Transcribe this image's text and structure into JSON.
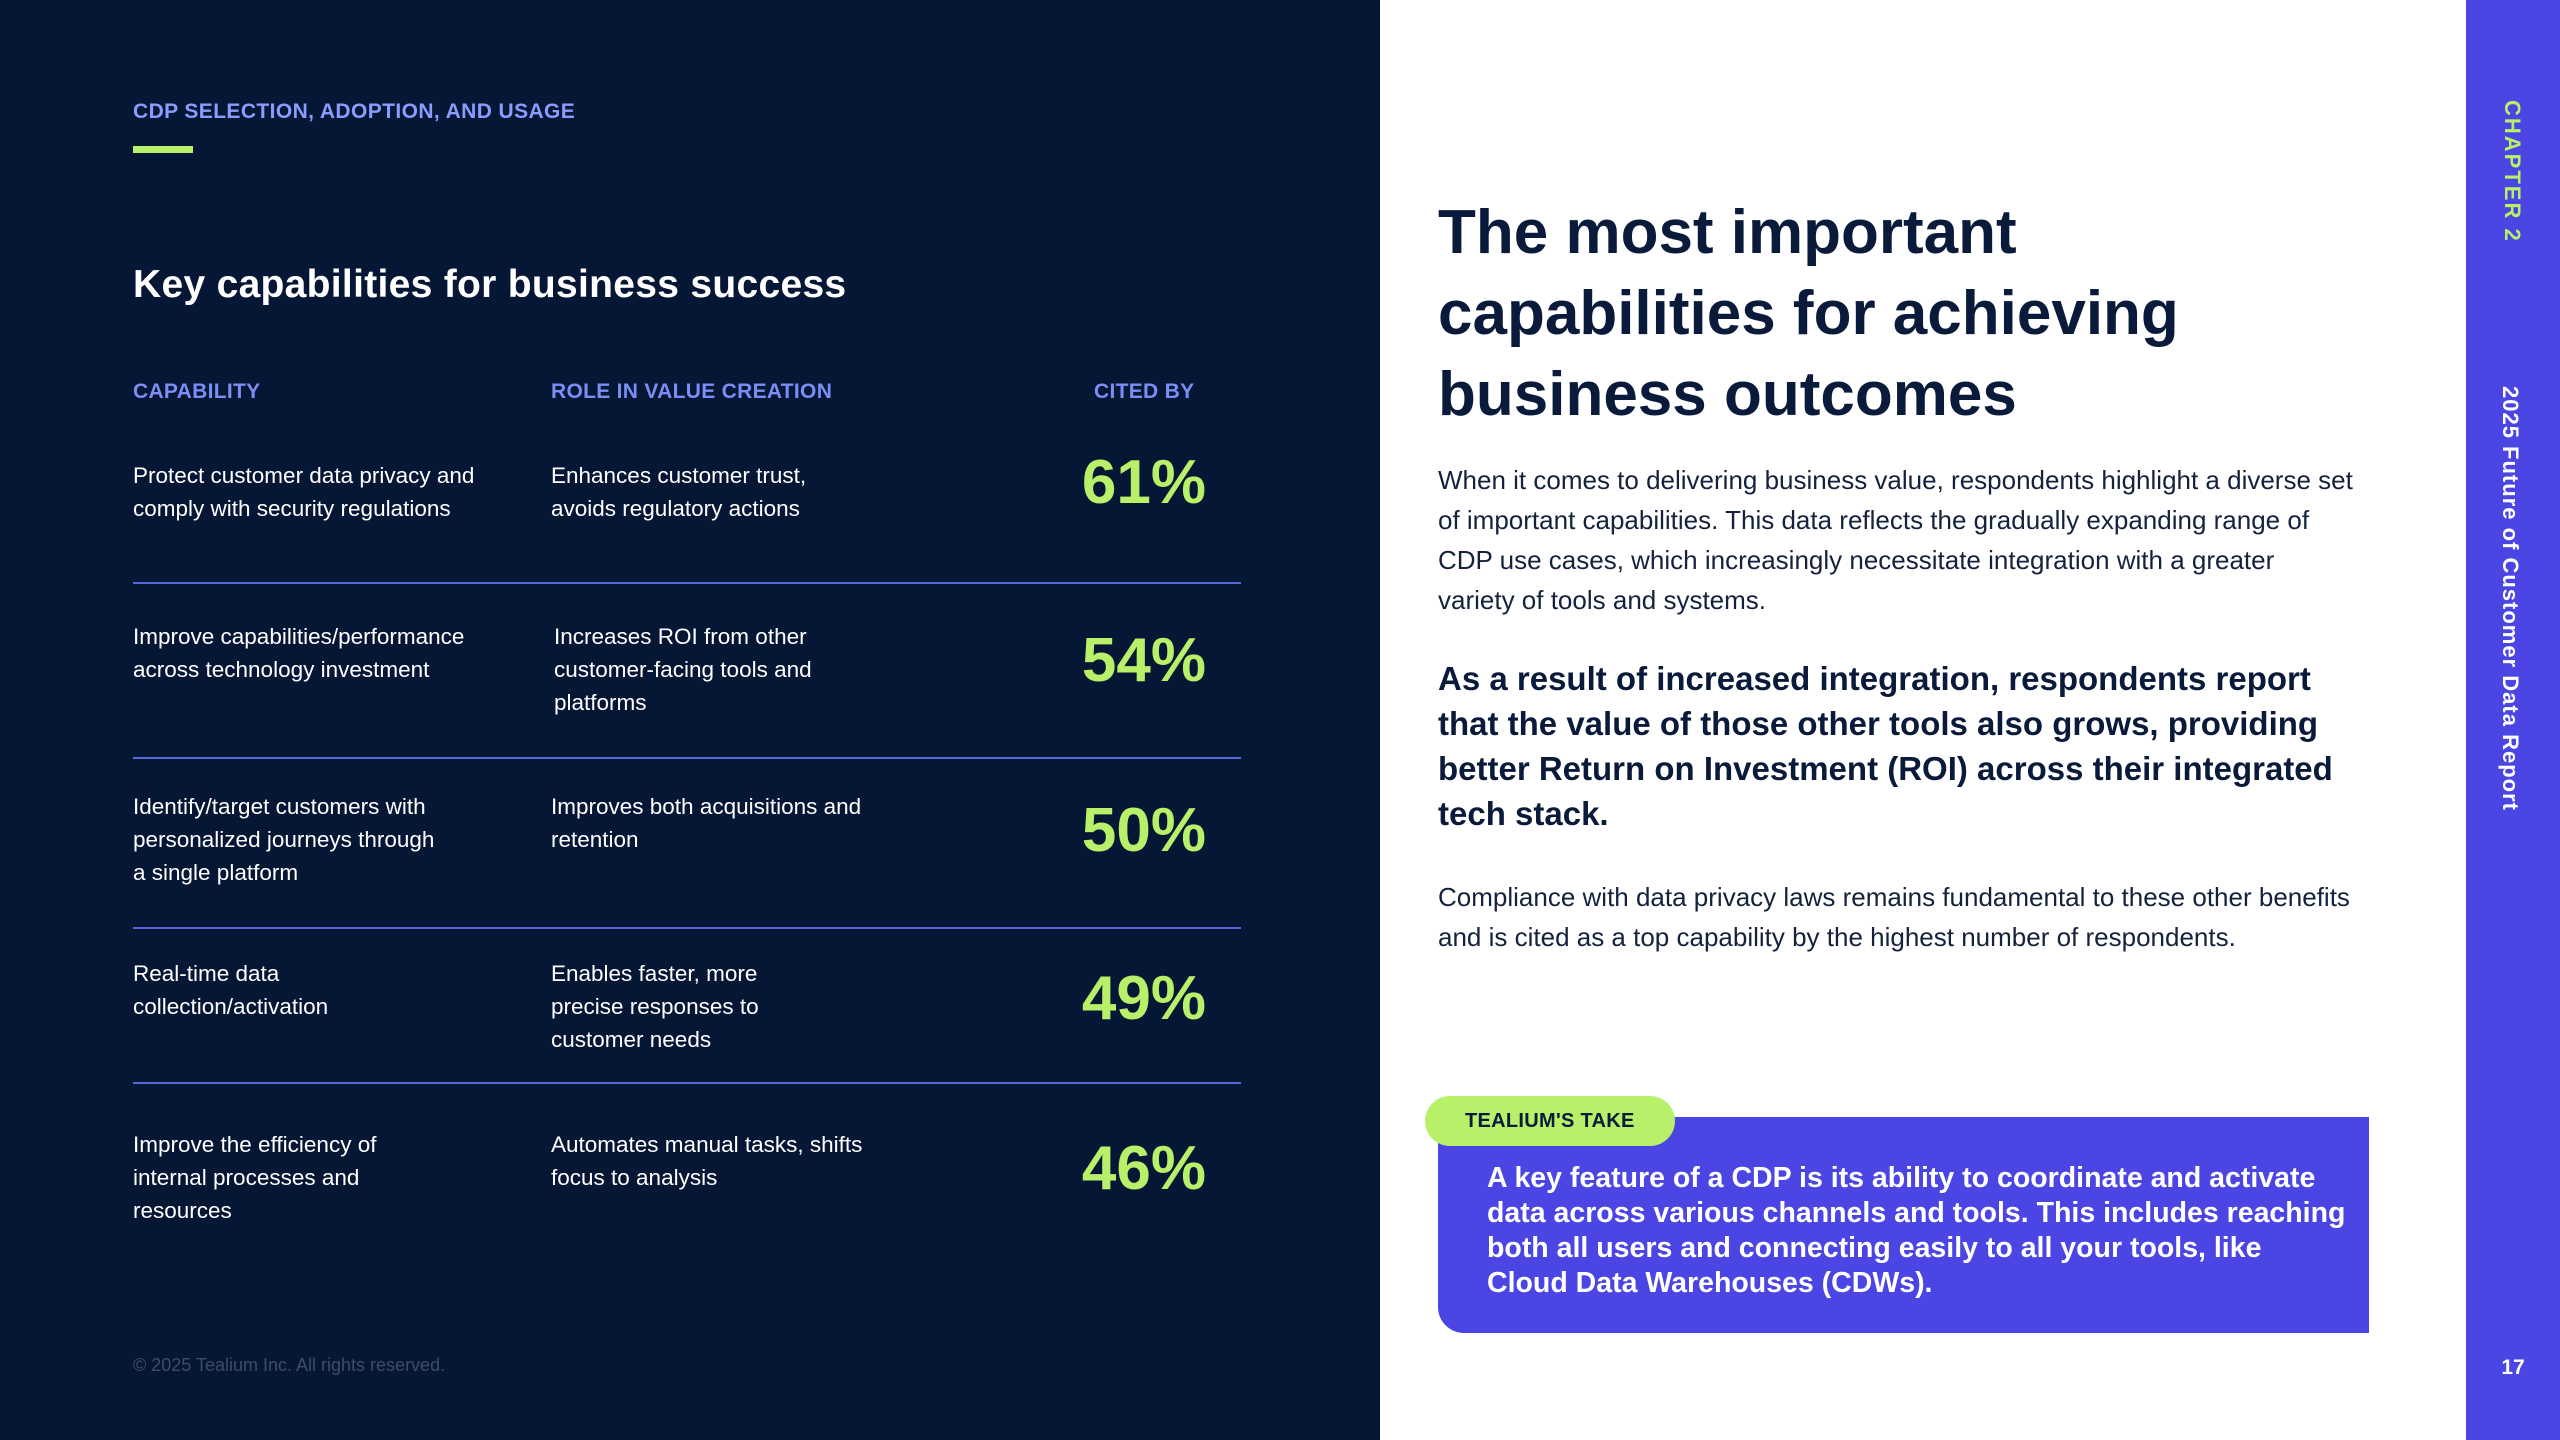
{
  "left_panel": {
    "eyebrow": "CDP SELECTION, ADOPTION, AND USAGE",
    "title": "Key capabilities for business success",
    "table": {
      "headers": [
        "CAPABILITY",
        "ROLE IN VALUE CREATION",
        "CITED BY"
      ],
      "rows": [
        {
          "capability": "Protect customer data privacy and comply with security regulations",
          "role": "Enhances customer trust, avoids regulatory actions",
          "cited_by": "61%"
        },
        {
          "capability": "Improve capabilities/performance across technology investment",
          "role": "Increases ROI from other customer-facing tools and platforms",
          "cited_by": "54%"
        },
        {
          "capability": "Identify/target customers with personalized journeys through a single platform",
          "role": "Improves both acquisitions and retention",
          "cited_by": "50%"
        },
        {
          "capability": "Real-time data collection/activation",
          "role": "Enables faster, more precise responses to customer needs",
          "cited_by": "49%"
        },
        {
          "capability": "Improve the efficiency of internal processes and resources",
          "role": "Automates manual tasks, shifts focus to analysis",
          "cited_by": "46%"
        }
      ]
    },
    "copyright": "© 2025 Tealium Inc. All rights reserved."
  },
  "main": {
    "headline": "The most important capabilities for achieving business outcomes",
    "paragraph_1": "When it comes to delivering business value, respondents highlight a diverse set of important capabilities. This data reflects the gradually expanding range of CDP use cases, which increasingly necessitate integration with a greater variety of tools and systems.",
    "highlight": "As a result of increased integration, respondents report that the value of those other tools also grows, providing better Return on Investment (ROI) across their integrated tech stack.",
    "paragraph_2": "Compliance with data privacy laws remains fundamental to these other benefits and is cited as a top capability by the highest number of respondents.",
    "callout": {
      "label": "TEALIUM'S TAKE",
      "text": "A key feature of a CDP is its ability to coordinate and activate data across various channels and tools. This includes reaching both all users and connecting easily to all your tools, like Cloud Data Warehouses (CDWs)."
    }
  },
  "sidebar": {
    "chapter": "CHAPTER 2",
    "report_title": "2025 Future of Customer Data Report",
    "page_number": "17"
  },
  "colors": {
    "navy": "#061736",
    "accent_green": "#b8f06a",
    "accent_purple": "#4b45e3",
    "header_blue": "#7b8ef5"
  }
}
